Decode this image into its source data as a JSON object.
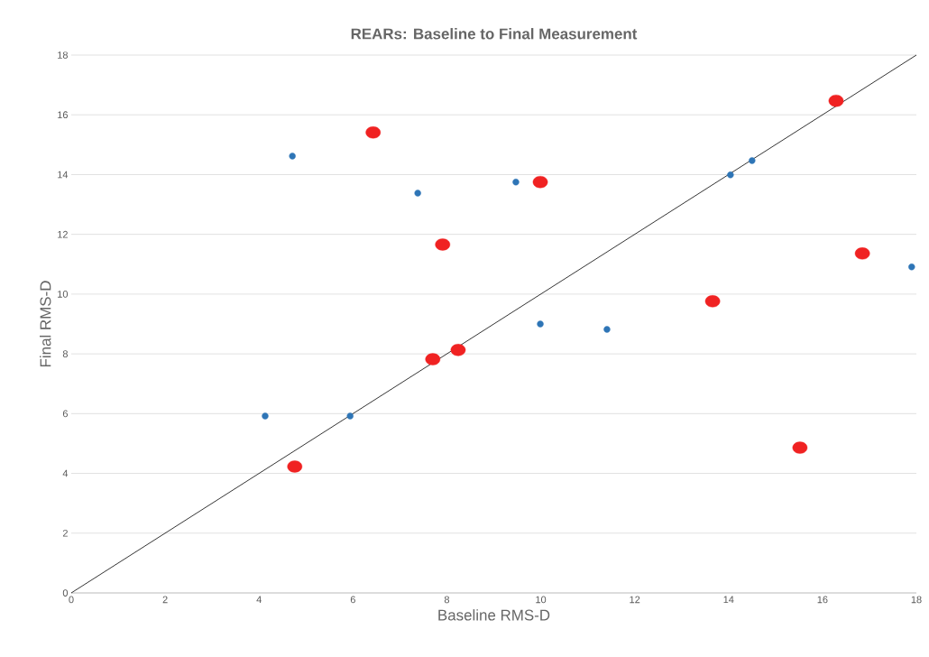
{
  "chart_data": {
    "type": "scatter",
    "title": "REARs: Baseline to Final Measurement",
    "xlabel": "Baseline RMS-D",
    "ylabel": "Final RMS-D",
    "xlim": [
      0,
      18
    ],
    "ylim": [
      0,
      18
    ],
    "xticks": [
      0,
      2,
      4,
      6,
      8,
      10,
      12,
      14,
      16,
      18
    ],
    "yticks": [
      0,
      2,
      4,
      6,
      8,
      10,
      12,
      14,
      16,
      18
    ],
    "grid": "y",
    "marker": "circle",
    "series": [
      {
        "color": "#000000",
        "type": "line",
        "marker": "none",
        "x": [
          0,
          18
        ],
        "values": [
          0,
          18
        ]
      },
      {
        "color": "#2e75b6",
        "x": [
          4.71,
          7.38,
          9.47,
          4.13,
          5.94,
          9.99,
          11.41,
          14.04,
          14.5,
          17.9
        ],
        "values": [
          14.62,
          13.38,
          13.75,
          5.92,
          5.92,
          9.0,
          8.82,
          13.99,
          14.47,
          10.91
        ]
      },
      {
        "color": "#f02222",
        "x": [
          6.43,
          9.99,
          7.91,
          7.7,
          8.24,
          4.76,
          16.29,
          16.85,
          13.66,
          15.52
        ],
        "values": [
          15.41,
          13.75,
          11.66,
          7.82,
          8.13,
          4.23,
          16.47,
          11.36,
          9.76,
          4.86
        ]
      }
    ]
  }
}
